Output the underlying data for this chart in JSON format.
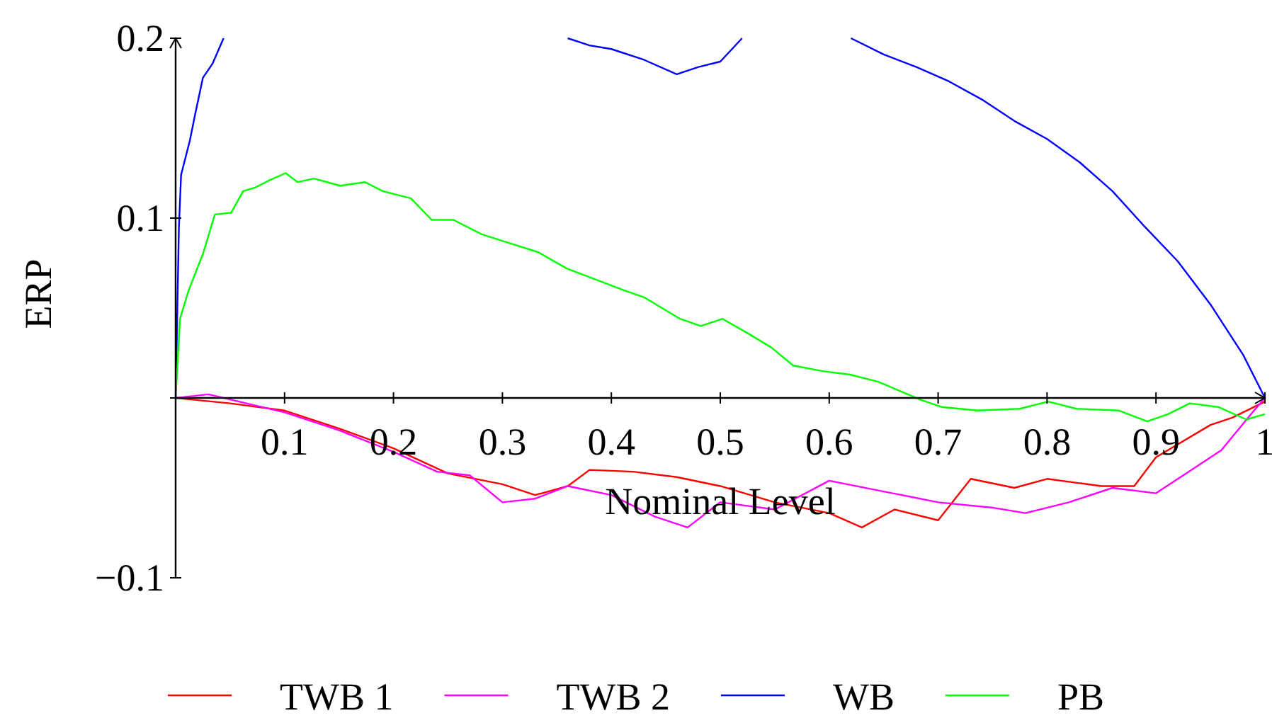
{
  "chart_data": {
    "type": "line",
    "xlabel": "Nominal Level",
    "ylabel": "ERP",
    "xlim": [
      0,
      1
    ],
    "ylim": [
      -0.1,
      0.2
    ],
    "xticks": [
      {
        "value": 0,
        "label": null
      },
      0.1,
      0.2,
      0.3,
      0.4,
      0.5,
      0.6,
      0.7,
      0.8,
      0.9,
      1
    ],
    "yticks": [
      -0.1,
      {
        "value": 0,
        "label": null
      },
      0.1,
      0.2
    ],
    "legend": "bottom",
    "grid": false,
    "marker": "none",
    "line_style": "solid",
    "series": [
      {
        "name": "TWB 1",
        "color": "#ff0000",
        "x": [
          0,
          0.05,
          0.1,
          0.15,
          0.2,
          0.25,
          0.3,
          0.33,
          0.36,
          0.38,
          0.42,
          0.46,
          0.5,
          0.55,
          0.6,
          0.63,
          0.66,
          0.7,
          0.73,
          0.77,
          0.8,
          0.85,
          0.88,
          0.9,
          0.95,
          0.97,
          1
        ],
        "values": [
          0,
          -0.003,
          -0.007,
          -0.017,
          -0.028,
          -0.042,
          -0.048,
          -0.054,
          -0.049,
          -0.04,
          -0.041,
          -0.044,
          -0.049,
          -0.058,
          -0.064,
          -0.072,
          -0.062,
          -0.068,
          -0.045,
          -0.05,
          -0.045,
          -0.049,
          -0.049,
          -0.033,
          -0.015,
          -0.011,
          -0.002
        ]
      },
      {
        "name": "TWB 2",
        "color": "#ff00ff",
        "x": [
          0,
          0.03,
          0.1,
          0.15,
          0.2,
          0.24,
          0.27,
          0.3,
          0.33,
          0.36,
          0.4,
          0.44,
          0.47,
          0.5,
          0.55,
          0.6,
          0.65,
          0.7,
          0.75,
          0.78,
          0.82,
          0.86,
          0.9,
          0.93,
          0.96,
          0.99,
          1
        ],
        "values": [
          0,
          0.002,
          -0.008,
          -0.018,
          -0.03,
          -0.041,
          -0.043,
          -0.058,
          -0.056,
          -0.049,
          -0.054,
          -0.066,
          -0.072,
          -0.058,
          -0.062,
          -0.046,
          -0.052,
          -0.058,
          -0.061,
          -0.064,
          -0.058,
          -0.05,
          -0.053,
          -0.041,
          -0.029,
          -0.007,
          0
        ]
      },
      {
        "name": "WB",
        "color": "#0000ff",
        "x": [
          0,
          0.003,
          0.005,
          0.013,
          0.018,
          0.025,
          0.034,
          0.044,
          0.2,
          0.36,
          0.38,
          0.4,
          0.43,
          0.46,
          0.48,
          0.5,
          0.52,
          0.57,
          0.62,
          0.65,
          0.68,
          0.71,
          0.74,
          0.77,
          0.8,
          0.83,
          0.86,
          0.89,
          0.92,
          0.95,
          0.98,
          1
        ],
        "values": [
          0,
          0.095,
          0.124,
          0.143,
          0.158,
          0.178,
          0.186,
          0.2,
          null,
          0.2,
          0.196,
          0.194,
          0.188,
          0.18,
          0.184,
          0.187,
          0.2,
          null,
          0.2,
          0.191,
          0.184,
          0.176,
          0.166,
          0.154,
          0.144,
          0.131,
          0.115,
          0.095,
          0.076,
          0.052,
          0.024,
          0
        ]
      },
      {
        "name": "PB",
        "color": "#00ff00",
        "x": [
          0,
          0.004,
          0.012,
          0.025,
          0.036,
          0.051,
          0.062,
          0.073,
          0.086,
          0.101,
          0.112,
          0.127,
          0.151,
          0.174,
          0.19,
          0.216,
          0.235,
          0.255,
          0.281,
          0.307,
          0.333,
          0.359,
          0.385,
          0.411,
          0.43,
          0.463,
          0.482,
          0.502,
          0.528,
          0.547,
          0.567,
          0.593,
          0.619,
          0.645,
          0.684,
          0.703,
          0.736,
          0.775,
          0.801,
          0.827,
          0.866,
          0.892,
          0.911,
          0.931,
          0.957,
          0.983,
          1
        ],
        "values": [
          0,
          0.044,
          0.06,
          0.08,
          0.102,
          0.103,
          0.115,
          0.117,
          0.121,
          0.125,
          0.12,
          0.122,
          0.118,
          0.12,
          0.115,
          0.111,
          0.099,
          0.099,
          0.091,
          0.086,
          0.081,
          0.072,
          0.066,
          0.06,
          0.056,
          0.044,
          0.04,
          0.044,
          0.035,
          0.028,
          0.018,
          0.015,
          0.013,
          0.009,
          -0.001,
          -0.005,
          -0.007,
          -0.006,
          -0.002,
          -0.006,
          -0.007,
          -0.013,
          -0.009,
          -0.003,
          -0.005,
          -0.012,
          -0.009
        ]
      }
    ]
  }
}
